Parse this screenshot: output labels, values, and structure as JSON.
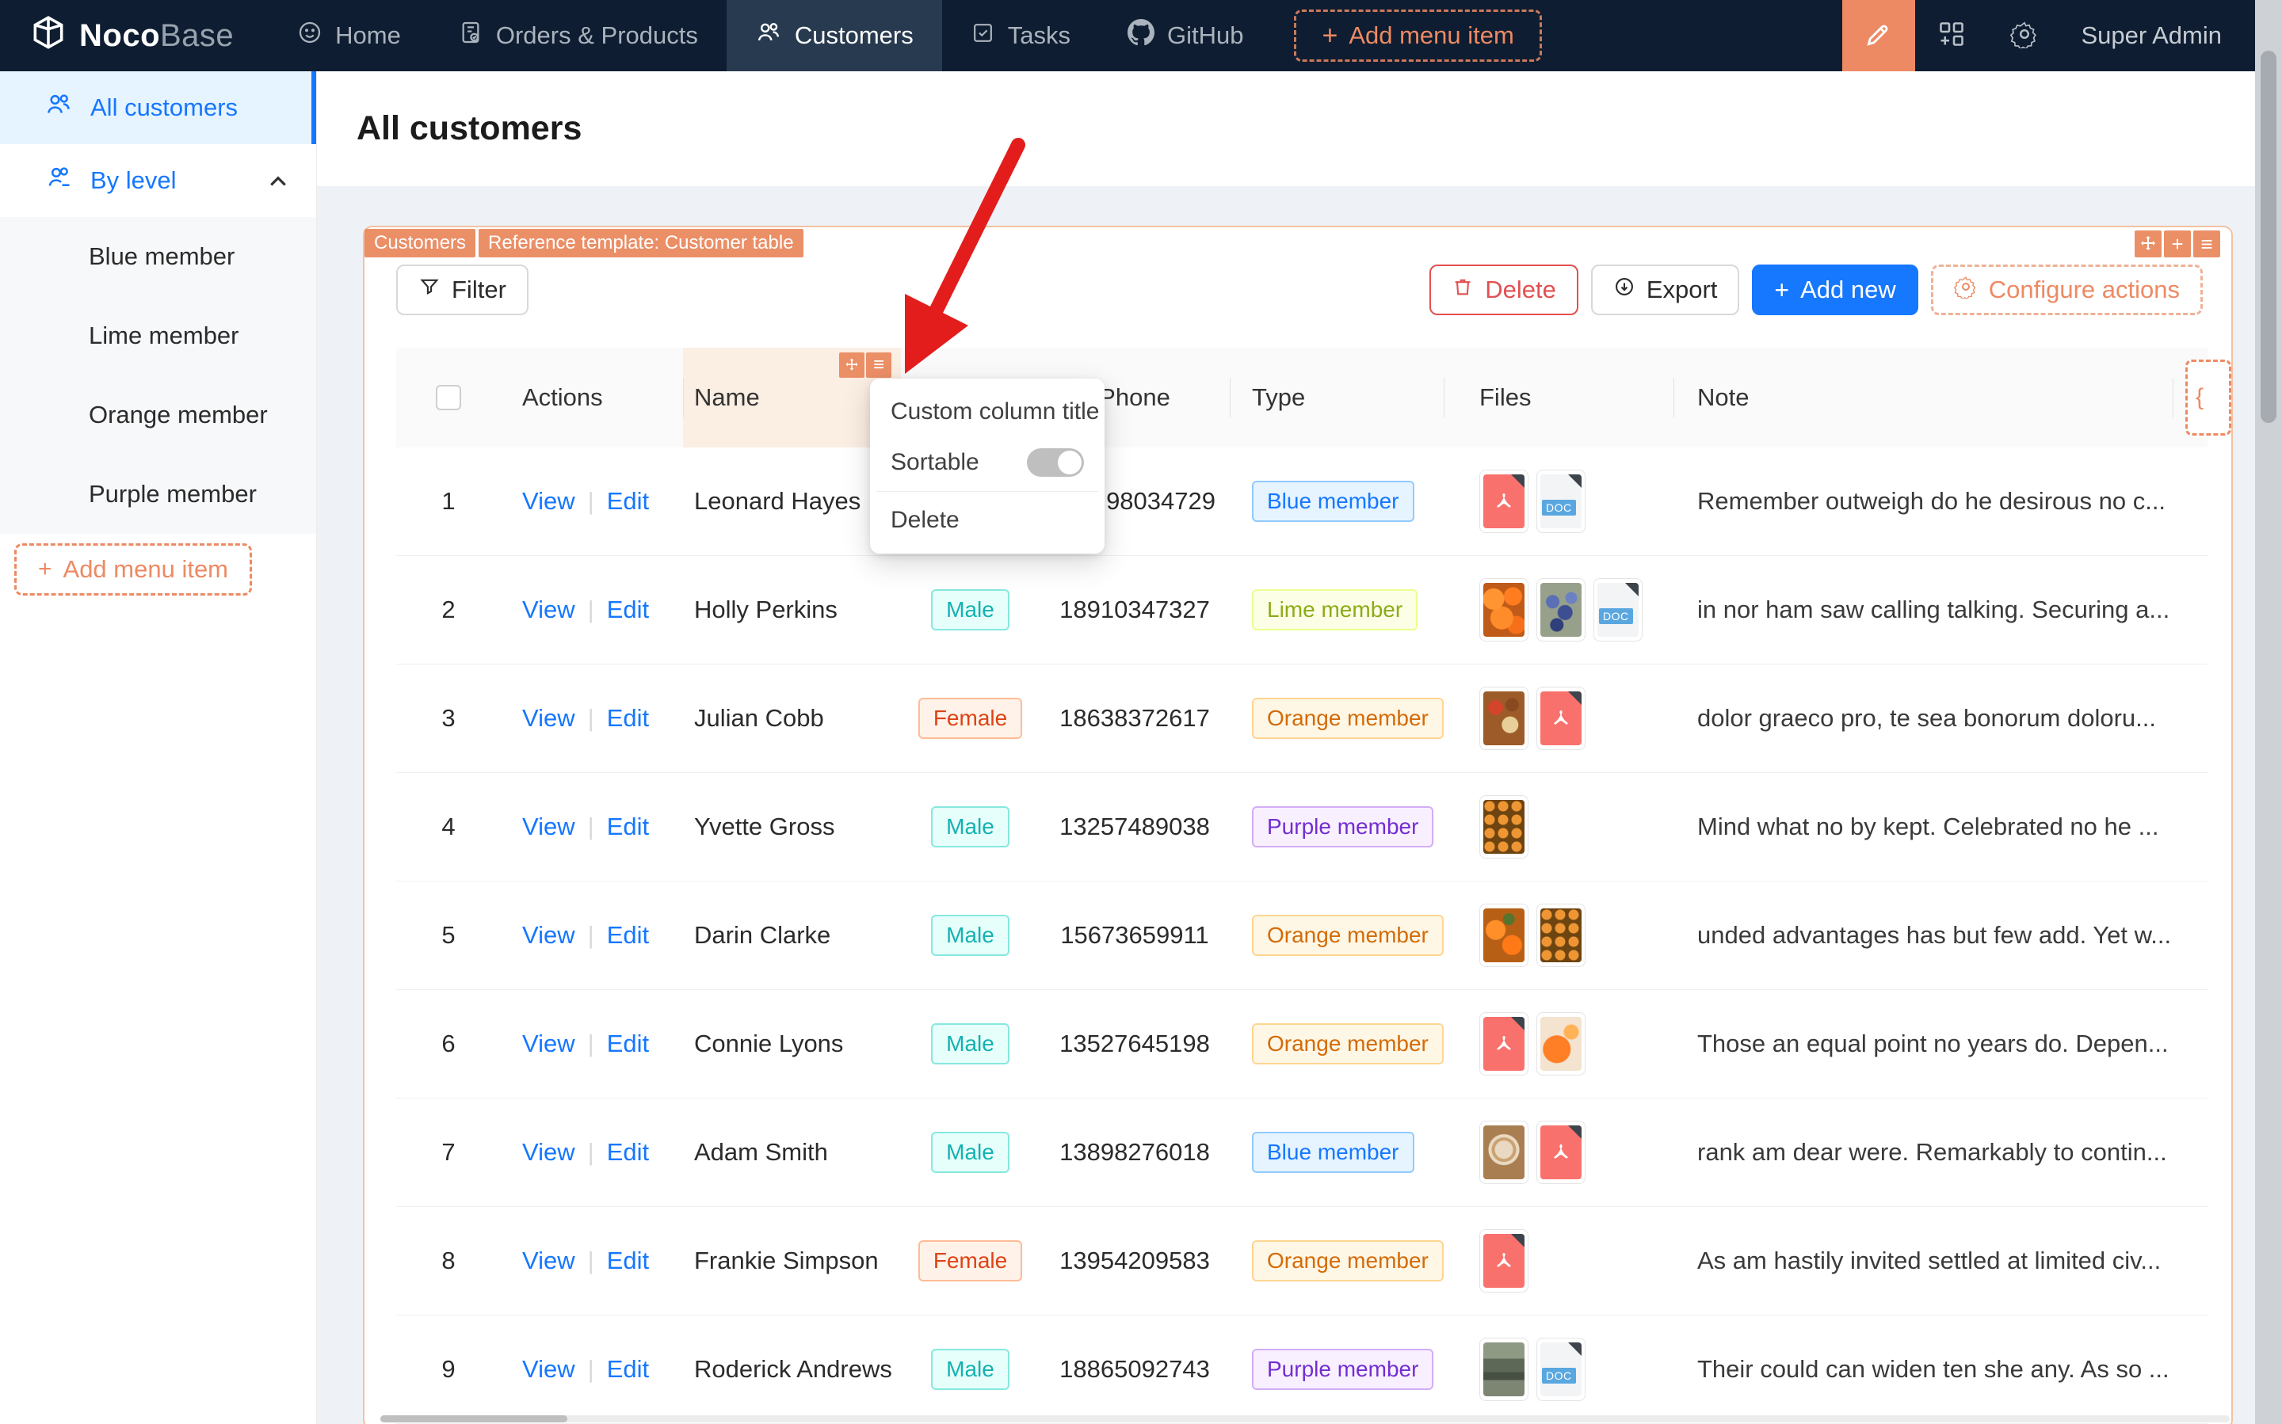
{
  "navbar": {
    "logo": {
      "part1": "Noco",
      "part2": "Base"
    },
    "items": [
      {
        "label": "Home"
      },
      {
        "label": "Orders & Products"
      },
      {
        "label": "Customers",
        "active": true
      },
      {
        "label": "Tasks"
      },
      {
        "label": "GitHub"
      }
    ],
    "add_menu_item": "Add menu item",
    "user": "Super Admin"
  },
  "sidebar": {
    "all_customers": "All customers",
    "by_level": "By level",
    "levels": [
      "Blue member",
      "Lime member",
      "Orange member",
      "Purple member"
    ],
    "add_menu_item": "Add menu item"
  },
  "page": {
    "title": "All customers"
  },
  "block": {
    "tags": [
      "Customers",
      "Reference template: Customer table"
    ],
    "filter": "Filter",
    "delete": "Delete",
    "export": "Export",
    "add_new": "Add new",
    "configure_actions": "Configure actions"
  },
  "table": {
    "headers": {
      "actions": "Actions",
      "name": "Name",
      "gender": "",
      "phone": "Phone",
      "type": "Type",
      "files": "Files",
      "note": "Note"
    },
    "link_view": "View",
    "link_edit": "Edit",
    "doc_label": "DOC",
    "rows": [
      {
        "num": "1",
        "name": "Leonard Hayes",
        "gender": null,
        "phone": "98034729",
        "type": "Blue member",
        "type_key": "blue",
        "files": [
          "pdf",
          "doc"
        ],
        "note": "Remember outweigh do he desirous no c..."
      },
      {
        "num": "2",
        "name": "Holly Perkins",
        "gender": "Male",
        "phone": "18910347327",
        "type": "Lime member",
        "type_key": "lime",
        "files": [
          "img-oranges",
          "img-berries",
          "doc"
        ],
        "note": "in nor ham saw calling talking. Securing a..."
      },
      {
        "num": "3",
        "name": "Julian Cobb",
        "gender": "Female",
        "phone": "18638372617",
        "type": "Orange member",
        "type_key": "orange",
        "files": [
          "img-food",
          "pdf"
        ],
        "note": "dolor graeco pro, te sea bonorum doloru..."
      },
      {
        "num": "4",
        "name": "Yvette Gross",
        "gender": "Male",
        "phone": "13257489038",
        "type": "Purple member",
        "type_key": "purple",
        "files": [
          "img-pumpkins"
        ],
        "note": "Mind what no by kept. Celebrated no he ..."
      },
      {
        "num": "5",
        "name": "Darin Clarke",
        "gender": "Male",
        "phone": "15673659911",
        "type": "Orange member",
        "type_key": "orange",
        "files": [
          "img-oranges2",
          "img-pumpkins"
        ],
        "note": "unded advantages has but few add. Yet w..."
      },
      {
        "num": "6",
        "name": "Connie Lyons",
        "gender": "Male",
        "phone": "13527645198",
        "type": "Orange member",
        "type_key": "orange",
        "files": [
          "pdf",
          "img-orange-fruit"
        ],
        "note": "Those an equal point no years do. Depen..."
      },
      {
        "num": "7",
        "name": "Adam Smith",
        "gender": "Male",
        "phone": "13898276018",
        "type": "Blue member",
        "type_key": "blue",
        "files": [
          "img-coffee",
          "pdf"
        ],
        "note": "rank am dear were. Remarkably to contin..."
      },
      {
        "num": "8",
        "name": "Frankie Simpson",
        "gender": "Female",
        "phone": "13954209583",
        "type": "Orange member",
        "type_key": "orange",
        "files": [
          "pdf"
        ],
        "note": "As am hastily invited settled at limited civ..."
      },
      {
        "num": "9",
        "name": "Roderick Andrews",
        "gender": "Male",
        "phone": "18865092743",
        "type": "Purple member",
        "type_key": "purple",
        "files": [
          "img-storefront",
          "doc"
        ],
        "note": "Their could can widen ten she any. As so ..."
      }
    ]
  },
  "popup": {
    "custom_column_title": "Custom column title",
    "sortable": "Sortable",
    "sortable_enabled": false,
    "delete": "Delete"
  },
  "colors": {
    "navbar_bg": "#0e1d31",
    "accent_orange": "#eb8f67",
    "primary_blue": "#1677ff",
    "danger_red": "#e25050",
    "arrow_red": "#e31d1c",
    "block_border": "#f2c2a2"
  }
}
